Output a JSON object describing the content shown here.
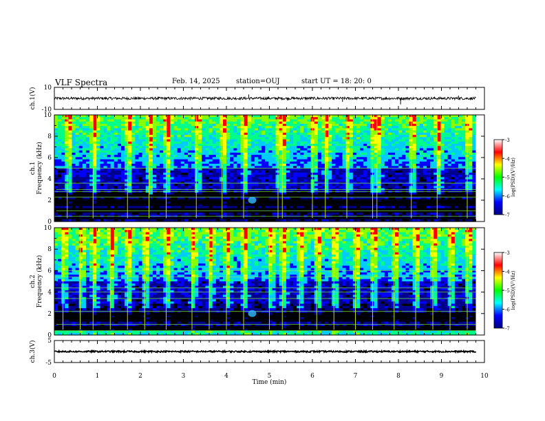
{
  "header": {
    "title": "VLF Spectra",
    "date": "Feb. 14, 2025",
    "station": "station=OUJ",
    "start": "start UT = 18: 20: 0"
  },
  "colors": {
    "spectrogram_ramp": [
      "#000000",
      "#00008c",
      "#0000ff",
      "#00ccff",
      "#00ff88",
      "#88ff00",
      "#ffff00",
      "#ff0000"
    ],
    "colorbar_ramp": [
      "#000080",
      "#0000ff",
      "#00ffff",
      "#00ff00",
      "#ffff00",
      "#ff0000",
      "#ffffff"
    ]
  },
  "chart_data": [
    {
      "type": "line",
      "panel": "ch1-waveform",
      "ylabel": "ch.1(V)",
      "ylim": [
        -10,
        10
      ],
      "yticks": [
        "10",
        "-10"
      ],
      "baseline": 0,
      "noise_band": [
        -1.2,
        1.2
      ],
      "spikes": [
        {
          "t": 4.52,
          "v": 3.5
        },
        {
          "t": 6.7,
          "v": -3.2
        },
        {
          "t": 8.05,
          "v": -5.5
        },
        {
          "t": 9.4,
          "v": 2.5
        }
      ]
    },
    {
      "type": "heatmap",
      "panel": "ch1-spectrogram",
      "ylabel": "ch.1",
      "ylabel2": "Frequency (kHz)",
      "ylim": [
        0,
        10
      ],
      "yticks": [
        "0",
        "2",
        "4",
        "6",
        "8",
        "10"
      ],
      "xlim": [
        0,
        9.8
      ],
      "colorbar": {
        "label": "log(PSD)(V²/Hz)",
        "ticks": [
          "-3",
          "-4",
          "-5",
          "-6",
          "-7"
        ],
        "range": [
          -7,
          -3
        ]
      },
      "dark_bands_khz": [
        0.3,
        1.1,
        1.6,
        2.0,
        2.5
      ],
      "hum_lines_khz": [
        0.5,
        1.0,
        2.3,
        2.8,
        3.0,
        3.6,
        5.0
      ],
      "bright_streaks_min": [
        0.3,
        0.9,
        1.7,
        2.2,
        2.6,
        3.3,
        3.9,
        4.4,
        5.2,
        5.3,
        6.0,
        6.3,
        6.8,
        7.4,
        7.5,
        8.3,
        8.9,
        9.6
      ],
      "whistler_patch": {
        "t": 4.6,
        "f": 2.0
      }
    },
    {
      "type": "heatmap",
      "panel": "ch2-spectrogram",
      "ylabel": "ch.2",
      "ylabel2": "Frequency (kHz)",
      "ylim": [
        0,
        10
      ],
      "yticks": [
        "0",
        "2",
        "4",
        "6",
        "8",
        "10"
      ],
      "xlim": [
        0,
        9.8
      ],
      "colorbar": {
        "label": "log(PSD)(V²/Hz)",
        "ticks": [
          "-3",
          "-4",
          "-5",
          "-6",
          "-7"
        ],
        "range": [
          -7,
          -3
        ]
      },
      "dark_bands_khz": [
        0.6,
        1.4,
        1.8
      ],
      "hum_lines_khz": [
        0.4,
        1.0,
        2.2,
        3.4,
        4.0,
        4.4,
        5.4,
        6.0
      ],
      "bright_streaks_min": [
        0.2,
        0.6,
        0.9,
        1.3,
        1.7,
        2.1,
        2.6,
        3.2,
        3.6,
        4.0,
        4.4,
        5.0,
        5.3,
        5.7,
        6.1,
        6.5,
        7.0,
        7.4,
        7.9,
        8.4,
        8.8,
        9.2,
        9.6
      ],
      "whistler_patch": {
        "t": 4.6,
        "f": 2.0
      }
    },
    {
      "type": "line",
      "panel": "ch3-waveform",
      "ylabel": "ch.3(V)",
      "ylim": [
        -5,
        5
      ],
      "yticks": [
        "5",
        "-5"
      ],
      "baseline": 0,
      "noise_band": [
        -0.35,
        0.35
      ]
    }
  ],
  "x_axis": {
    "label": "Time (min)",
    "ticks": [
      "0",
      "1",
      "2",
      "3",
      "4",
      "5",
      "6",
      "7",
      "8",
      "9",
      "10"
    ],
    "range": [
      0,
      10
    ]
  }
}
